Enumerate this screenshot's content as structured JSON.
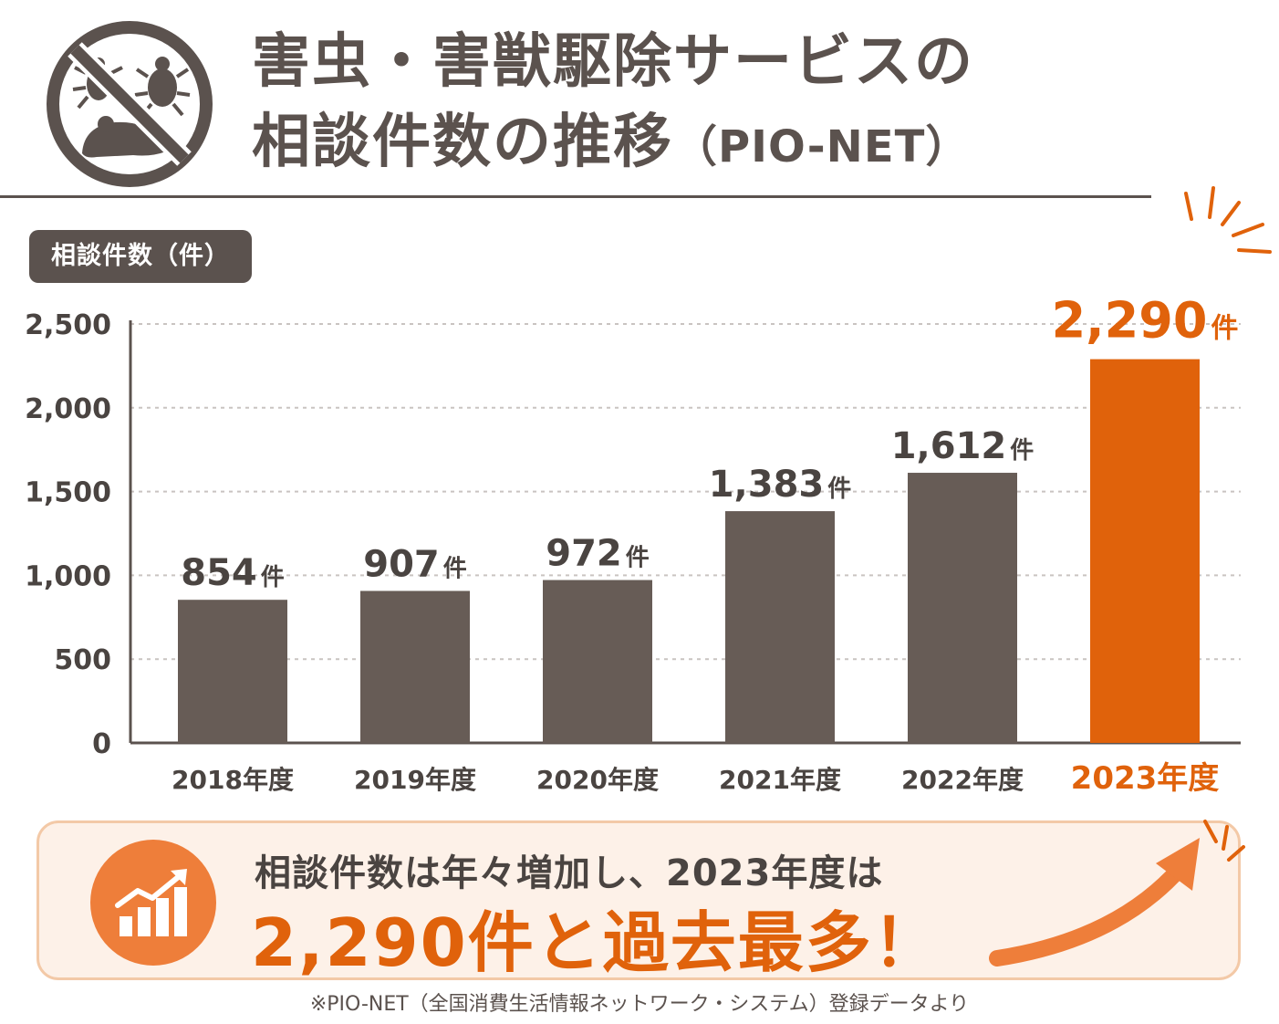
{
  "header": {
    "title_line1": "害虫・害獣駆除サービスの",
    "title_line2_main": "相談件数の推移",
    "title_line2_suffix": "（PIO-NET）",
    "logo_icon": "no-pests-icon"
  },
  "colors": {
    "bar": "#675c56",
    "highlight": "#e0620b",
    "grid": "#c9c4c1",
    "text": "#4a4441"
  },
  "chart_data": {
    "type": "bar",
    "ylabel": "相談件数（件）",
    "xlabel": "",
    "categories": [
      "2018年度",
      "2019年度",
      "2020年度",
      "2021年度",
      "2022年度",
      "2023年度"
    ],
    "values": [
      854,
      907,
      972,
      1383,
      1612,
      2290
    ],
    "value_labels": [
      "854",
      "907",
      "972",
      "1,383",
      "1,612",
      "2,290"
    ],
    "value_unit": "件",
    "highlight_index": 5,
    "ylim": [
      0,
      2500
    ],
    "yticks": [
      0,
      500,
      1000,
      1500,
      2000,
      2500
    ],
    "ytick_labels": [
      "0",
      "500",
      "1,000",
      "1,500",
      "2,000",
      "2,500"
    ],
    "grid": true
  },
  "summary": {
    "line1": "相談件数は年々増加し、2023年度は",
    "line2": "2,290件と過去最多！",
    "icon": "rising-bar-chart-icon"
  },
  "footnote": "※PIO-NET（全国消費生活情報ネットワーク・システム）登録データより"
}
